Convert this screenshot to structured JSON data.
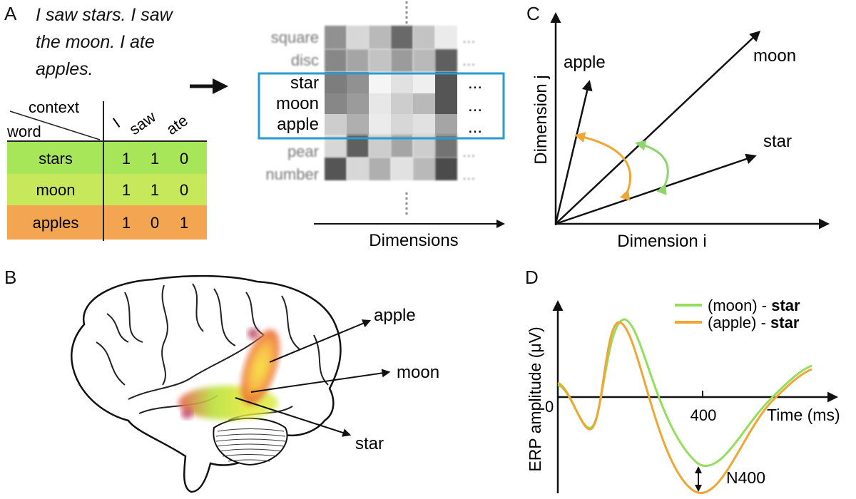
{
  "panels": {
    "a": {
      "label": "A",
      "sentence_lines": [
        "I saw stars. I saw",
        "the moon. I ate",
        "apples."
      ],
      "table": {
        "header_context": "context",
        "header_word": "word",
        "columns": [
          "I",
          "saw",
          "ate"
        ],
        "rows": [
          {
            "word": "stars",
            "values": [
              "1",
              "1",
              "0"
            ],
            "color": "#a6e658"
          },
          {
            "word": "moon",
            "values": [
              "1",
              "1",
              "0"
            ],
            "color": "#c6e85a"
          },
          {
            "word": "apples",
            "values": [
              "1",
              "0",
              "1"
            ],
            "color": "#f4a552"
          }
        ]
      },
      "matrix": {
        "blurred_top_words": [
          "square",
          "disc"
        ],
        "highlighted_words": [
          "star",
          "moon",
          "apple"
        ],
        "blurred_bottom_words": [
          "pear",
          "number"
        ],
        "ellipsis": "...",
        "axis_label": "Dimensions",
        "highlight_color": "#2a9ad0",
        "grays": [
          [
            0.55,
            0.2,
            0.35,
            0.75,
            0.3,
            0.1
          ],
          [
            0.6,
            0.45,
            0.3,
            0.5,
            0.35,
            0.8
          ],
          [
            0.65,
            0.55,
            0.05,
            0.15,
            0.08,
            0.85
          ],
          [
            0.6,
            0.5,
            0.12,
            0.25,
            0.35,
            0.85
          ],
          [
            0.25,
            0.4,
            0.1,
            0.2,
            0.15,
            0.45
          ],
          [
            0.2,
            0.8,
            0.25,
            0.45,
            0.25,
            0.7
          ],
          [
            0.85,
            0.2,
            0.4,
            0.15,
            0.35,
            0.9
          ]
        ]
      }
    },
    "b": {
      "label": "B",
      "words": [
        "apple",
        "moon",
        "star"
      ]
    },
    "c": {
      "label": "C",
      "vectors": [
        "apple",
        "moon",
        "star"
      ],
      "x_axis_label": "Dimension i",
      "y_axis_label": "Dimension j",
      "orange": "#f0a633",
      "green": "#8ed66a"
    },
    "d": {
      "label": "D",
      "legend": [
        {
          "prefix": "(moon) - ",
          "bold": "star",
          "color": "#95de5c"
        },
        {
          "prefix": "(apple) - ",
          "bold": "star",
          "color": "#f0a633"
        }
      ],
      "y_axis_label": "ERP amplitude (μV)",
      "x_axis_label": "Time (ms)",
      "zero_label": "0",
      "tick_label": "400",
      "component_label": "N400"
    }
  }
}
